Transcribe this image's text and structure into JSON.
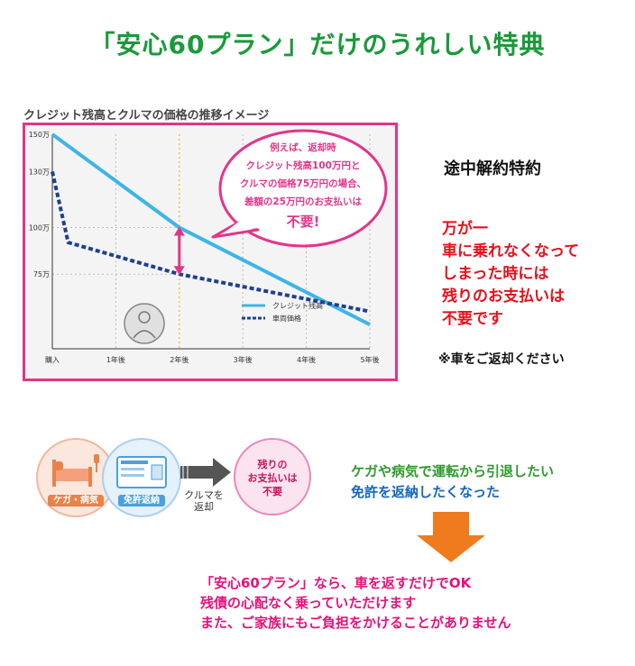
{
  "title": "「安心60プラン」だけのうれしい特典",
  "chart_caption": "クレジット残高とクルマの価格の推移イメージ",
  "chart_data": {
    "type": "line",
    "x": [
      "購入",
      "1年後",
      "2年後",
      "3年後",
      "4年後",
      "5年後"
    ],
    "y_ticks": [
      "150万",
      "130万",
      "100万",
      "75万"
    ],
    "ylim": [
      35,
      150
    ],
    "series": [
      {
        "name": "クレジット残高",
        "color": "#3db5e6",
        "style": "solid",
        "points": [
          [
            0,
            150
          ],
          [
            2,
            100
          ],
          [
            5,
            48
          ]
        ]
      },
      {
        "name": "車両価格",
        "color": "#1f3f93",
        "style": "dashed",
        "points": [
          [
            0,
            130
          ],
          [
            0.25,
            92
          ],
          [
            2,
            75
          ],
          [
            5,
            55
          ]
        ]
      }
    ],
    "bubble_lines": [
      "例えば、返却時",
      "クレジット残高100万円と",
      "クルマの価格75万円の場合、",
      "差額の25万円のお支払いは",
      "不要!"
    ],
    "grid": "dotted-vertical",
    "legend_position": "bottom-right"
  },
  "right_panel": {
    "heading": "途中解約特約",
    "lines": [
      "万が一",
      "車に乗れなくなって",
      "しまった時には",
      "残りのお支払いは",
      "不要です"
    ],
    "note": "※車をご返却ください"
  },
  "flow": {
    "circle1": "ケガ・病気",
    "circle2": "免許返納",
    "arrow_label": [
      "クルマを",
      "返却"
    ],
    "circle3": [
      "残りの",
      "お支払いは",
      "不要"
    ]
  },
  "middle_text": {
    "green": "ケガや病気で運転から引退したい",
    "blue": "免許を返納したくなった"
  },
  "bottom_text": [
    "「安心60プラン」なら、車を返すだけでOK",
    "残債の心配なく乗っていただけます",
    "また、ご家族にもご負担をかけることがありません"
  ],
  "colors": {
    "title": "#1a9a3a",
    "frame": "#e2358a",
    "alert": "#e8101a",
    "bottom": "#e8107a",
    "arrow": "#f07a1e"
  }
}
